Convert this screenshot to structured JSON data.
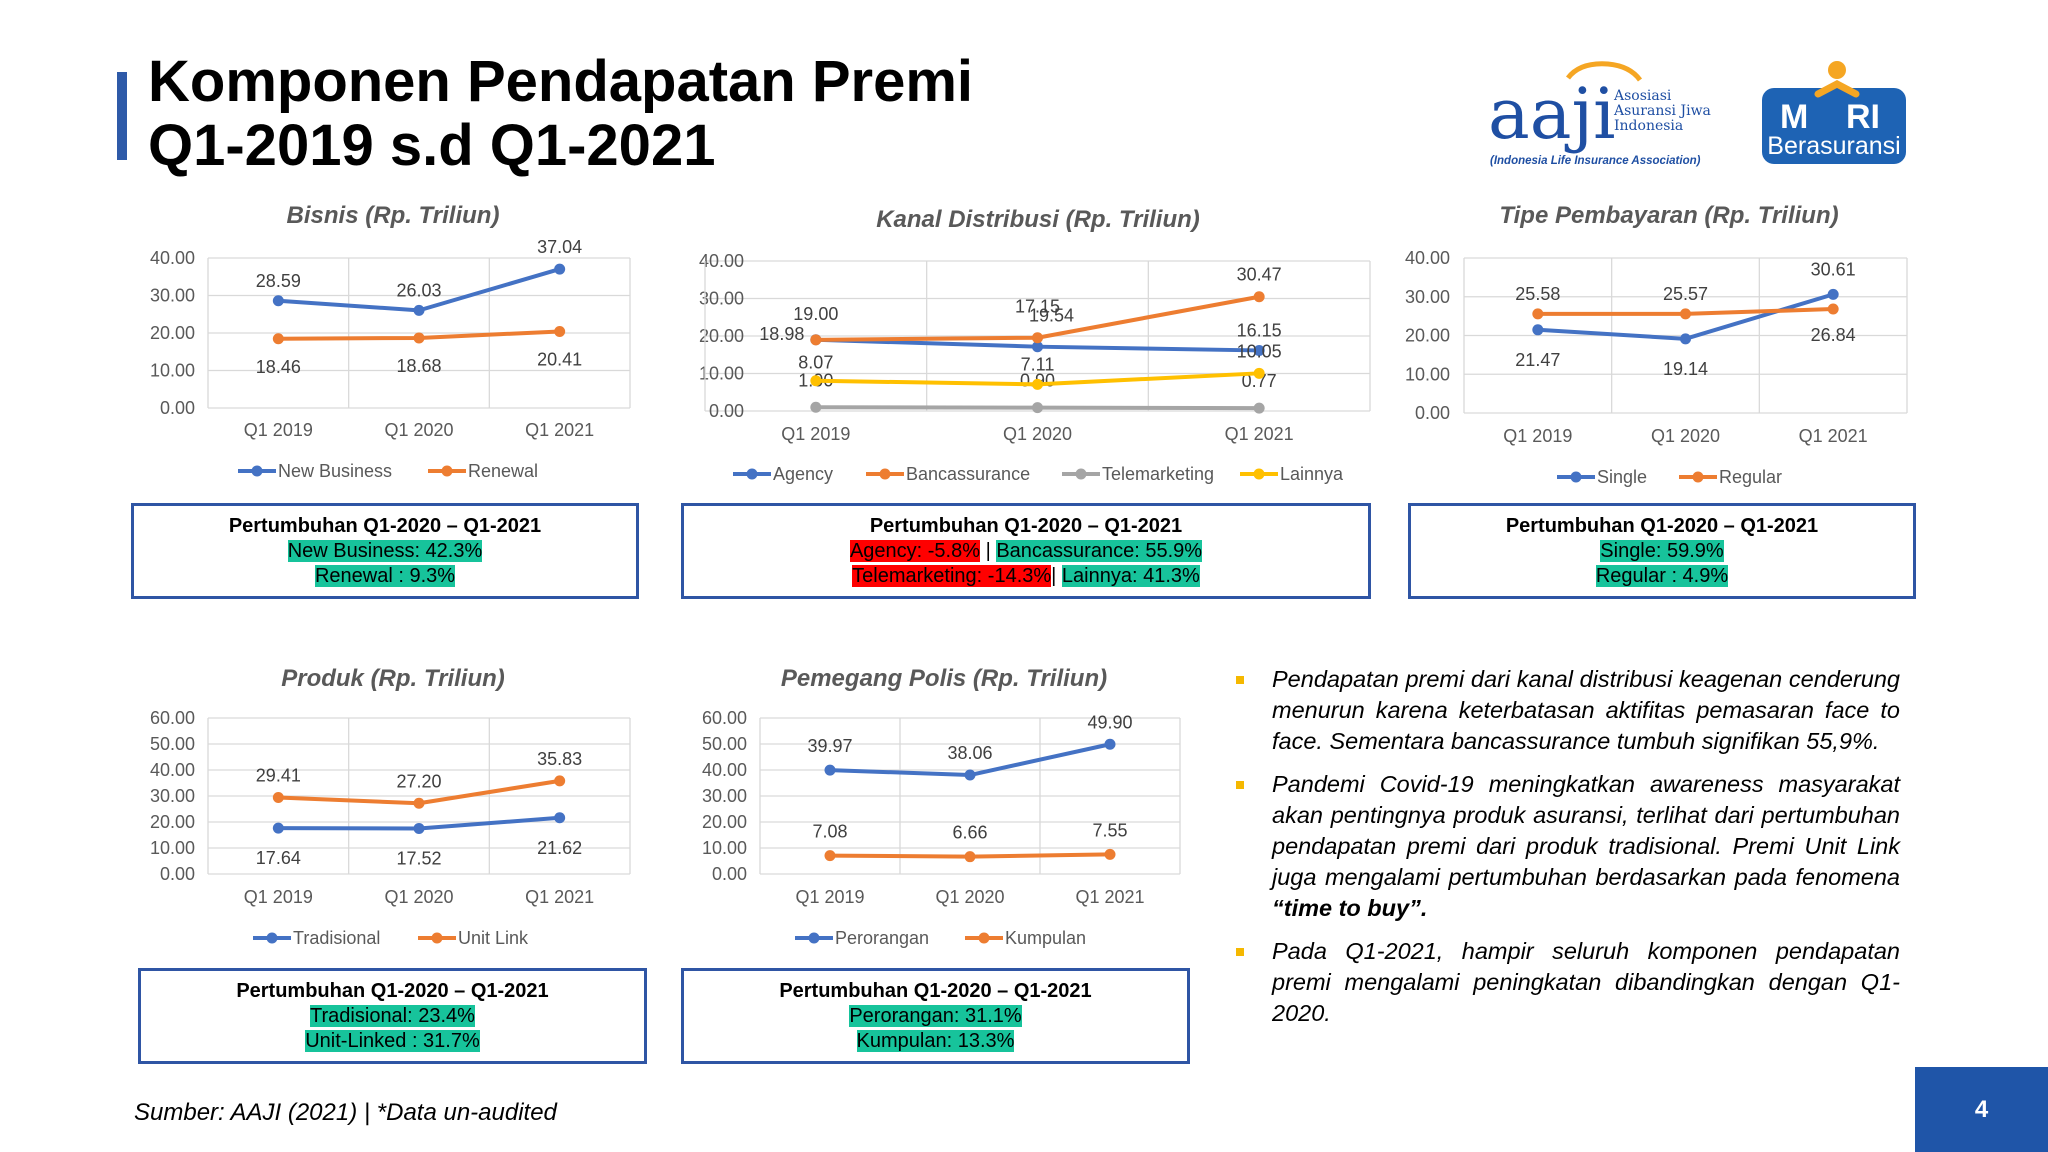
{
  "page": {
    "title_line1": "Komponen Pendapatan Premi",
    "title_line2": "Q1-2019 s.d Q1-2021",
    "source": "Sumber: AAJI (2021) | *Data un-audited",
    "page_number": "4"
  },
  "logos": {
    "aaji_text": "aaji",
    "aaji_line1": "Asosiasi",
    "aaji_line2": "Asuransi Jiwa",
    "aaji_line3": "Indonesia",
    "aaji_tagline": "(Indonesia Life Insurance Association)",
    "mari_text_m": "M",
    "mari_text_ri": "RI",
    "mari_sub": "Berasuransi",
    "colors": {
      "aaji_blue": "#1f4fa3",
      "aaji_orange": "#f5a623",
      "mari_blue": "#1e63b4"
    }
  },
  "colors": {
    "blue": "#4472c4",
    "orange": "#ed7d31",
    "gray": "#a5a5a5",
    "yellow": "#ffc000",
    "grid": "#d9d9d9",
    "axis_text": "#595959"
  },
  "chart_data": [
    {
      "id": "bisnis",
      "type": "line",
      "title": "Bisnis (Rp. Triliun)",
      "categories": [
        "Q1 2019",
        "Q1 2020",
        "Q1 2021"
      ],
      "yticks": [
        "40.00",
        "30.00",
        "20.00",
        "10.00",
        "0.00"
      ],
      "ylim": [
        0,
        40
      ],
      "series": [
        {
          "name": "New Business",
          "values": [
            28.59,
            26.03,
            37.04
          ],
          "labels": [
            "28.59",
            "26.03",
            "37.04"
          ],
          "color": "#4472c4"
        },
        {
          "name": "Renewal",
          "values": [
            18.46,
            18.68,
            20.41
          ],
          "labels": [
            "18.46",
            "18.68",
            "20.41"
          ],
          "color": "#ed7d31"
        }
      ],
      "legend": "bottom",
      "grid": true
    },
    {
      "id": "kanal",
      "type": "line",
      "title": "Kanal Distribusi (Rp. Triliun)",
      "categories": [
        "Q1 2019",
        "Q1 2020",
        "Q1 2021"
      ],
      "yticks": [
        "40.00",
        "30.00",
        "20.00",
        "10.00",
        "0.00"
      ],
      "ylim": [
        0,
        40
      ],
      "series": [
        {
          "name": "Agency",
          "values": [
            19.0,
            17.15,
            16.15
          ],
          "labels": [
            "19.00",
            "17.15",
            "16.15"
          ],
          "color": "#4472c4"
        },
        {
          "name": "Bancassurance",
          "values": [
            18.98,
            19.54,
            30.47
          ],
          "labels": [
            "18.98",
            "19.54",
            "30.47"
          ],
          "color": "#ed7d31"
        },
        {
          "name": "Telemarketing",
          "values": [
            1.0,
            0.9,
            0.77
          ],
          "labels": [
            "1.00",
            "0.90",
            "0.77"
          ],
          "color": "#a5a5a5"
        },
        {
          "name": "Lainnya",
          "values": [
            8.07,
            7.11,
            10.05
          ],
          "labels": [
            "8.07",
            "7.11",
            "10.05"
          ],
          "color": "#ffc000"
        }
      ],
      "legend": "bottom",
      "grid": true
    },
    {
      "id": "tipe",
      "type": "line",
      "title": "Tipe Pembayaran (Rp. Triliun)",
      "categories": [
        "Q1 2019",
        "Q1 2020",
        "Q1 2021"
      ],
      "yticks": [
        "40.00",
        "30.00",
        "20.00",
        "10.00",
        "0.00"
      ],
      "ylim": [
        0,
        40
      ],
      "series": [
        {
          "name": "Single",
          "values": [
            21.47,
            19.14,
            30.61
          ],
          "labels": [
            "21.47",
            "19.14",
            "30.61"
          ],
          "color": "#4472c4"
        },
        {
          "name": "Regular",
          "values": [
            25.58,
            25.57,
            26.84
          ],
          "labels": [
            "25.58",
            "25.57",
            "26.84"
          ],
          "color": "#ed7d31"
        }
      ],
      "legend": "bottom",
      "grid": true
    },
    {
      "id": "produk",
      "type": "line",
      "title": "Produk (Rp. Triliun)",
      "categories": [
        "Q1 2019",
        "Q1 2020",
        "Q1 2021"
      ],
      "yticks": [
        "60.00",
        "50.00",
        "40.00",
        "30.00",
        "20.00",
        "10.00",
        "0.00"
      ],
      "ylim": [
        0,
        60
      ],
      "series": [
        {
          "name": "Tradisional",
          "values": [
            17.64,
            17.52,
            21.62
          ],
          "labels": [
            "17.64",
            "17.52",
            "21.62"
          ],
          "color": "#4472c4"
        },
        {
          "name": "Unit Link",
          "values": [
            29.41,
            27.2,
            35.83
          ],
          "labels": [
            "29.41",
            "27.20",
            "35.83"
          ],
          "color": "#ed7d31"
        }
      ],
      "legend": "bottom",
      "grid": true
    },
    {
      "id": "pemegang",
      "type": "line",
      "title": "Pemegang Polis (Rp. Triliun)",
      "categories": [
        "Q1 2019",
        "Q1 2020",
        "Q1 2021"
      ],
      "yticks": [
        "60.00",
        "50.00",
        "40.00",
        "30.00",
        "20.00",
        "10.00",
        "0.00"
      ],
      "ylim": [
        0,
        60
      ],
      "series": [
        {
          "name": "Perorangan",
          "values": [
            39.97,
            38.06,
            49.9
          ],
          "labels": [
            "39.97",
            "38.06",
            "49.90"
          ],
          "color": "#4472c4"
        },
        {
          "name": "Kumpulan",
          "values": [
            7.08,
            6.66,
            7.55
          ],
          "labels": [
            "7.08",
            "6.66",
            "7.55"
          ],
          "color": "#ed7d31"
        }
      ],
      "legend": "bottom",
      "grid": true
    }
  ],
  "growth_boxes": {
    "bisnis": {
      "title": "Pertumbuhan Q1-2020 – Q1-2021",
      "line1": "New Business: 42.3%",
      "line2": "Renewal : 9.3%"
    },
    "kanal": {
      "title": "Pertumbuhan Q1-2020 – Q1-2021",
      "agency": "Agency: -5.8%",
      "sep": " | ",
      "banca": "Bancassurance: 55.9%",
      "tele": "Telemarketing: -14.3%",
      "sep2": "| ",
      "lainnya": "Lainnya: 41.3%"
    },
    "tipe": {
      "title": "Pertumbuhan Q1-2020 – Q1-2021",
      "line1": "Single: 59.9%",
      "line2": "Regular : 4.9%"
    },
    "produk": {
      "title": "Pertumbuhan Q1-2020 – Q1-2021",
      "line1": "Tradisional: 23.4%",
      "line2": "Unit-Linked : 31.7%"
    },
    "pemegang": {
      "title": "Pertumbuhan Q1-2020 – Q1-2021",
      "line1": "Perorangan: 31.1%",
      "line2": "Kumpulan: 13.3%"
    }
  },
  "bullets": {
    "b1": "Pendapatan premi dari kanal distribusi keagenan cenderung menurun karena keterbatasan aktifitas pemasaran face to face. Sementara bancassurance tumbuh signifikan 55,9%.",
    "b2_main": "Pandemi Covid-19 meningkatkan awareness masyarakat akan pentingnya produk asuransi, terlihat dari pertumbuhan pendapatan premi dari produk tradisional. Premi Unit Link juga mengalami pertumbuhan berdasarkan pada fenomena ",
    "b2_bold": "“time to buy”.",
    "b3": "Pada Q1-2021, hampir seluruh komponen pendapatan premi mengalami peningkatan dibandingkan dengan Q1-2020."
  }
}
